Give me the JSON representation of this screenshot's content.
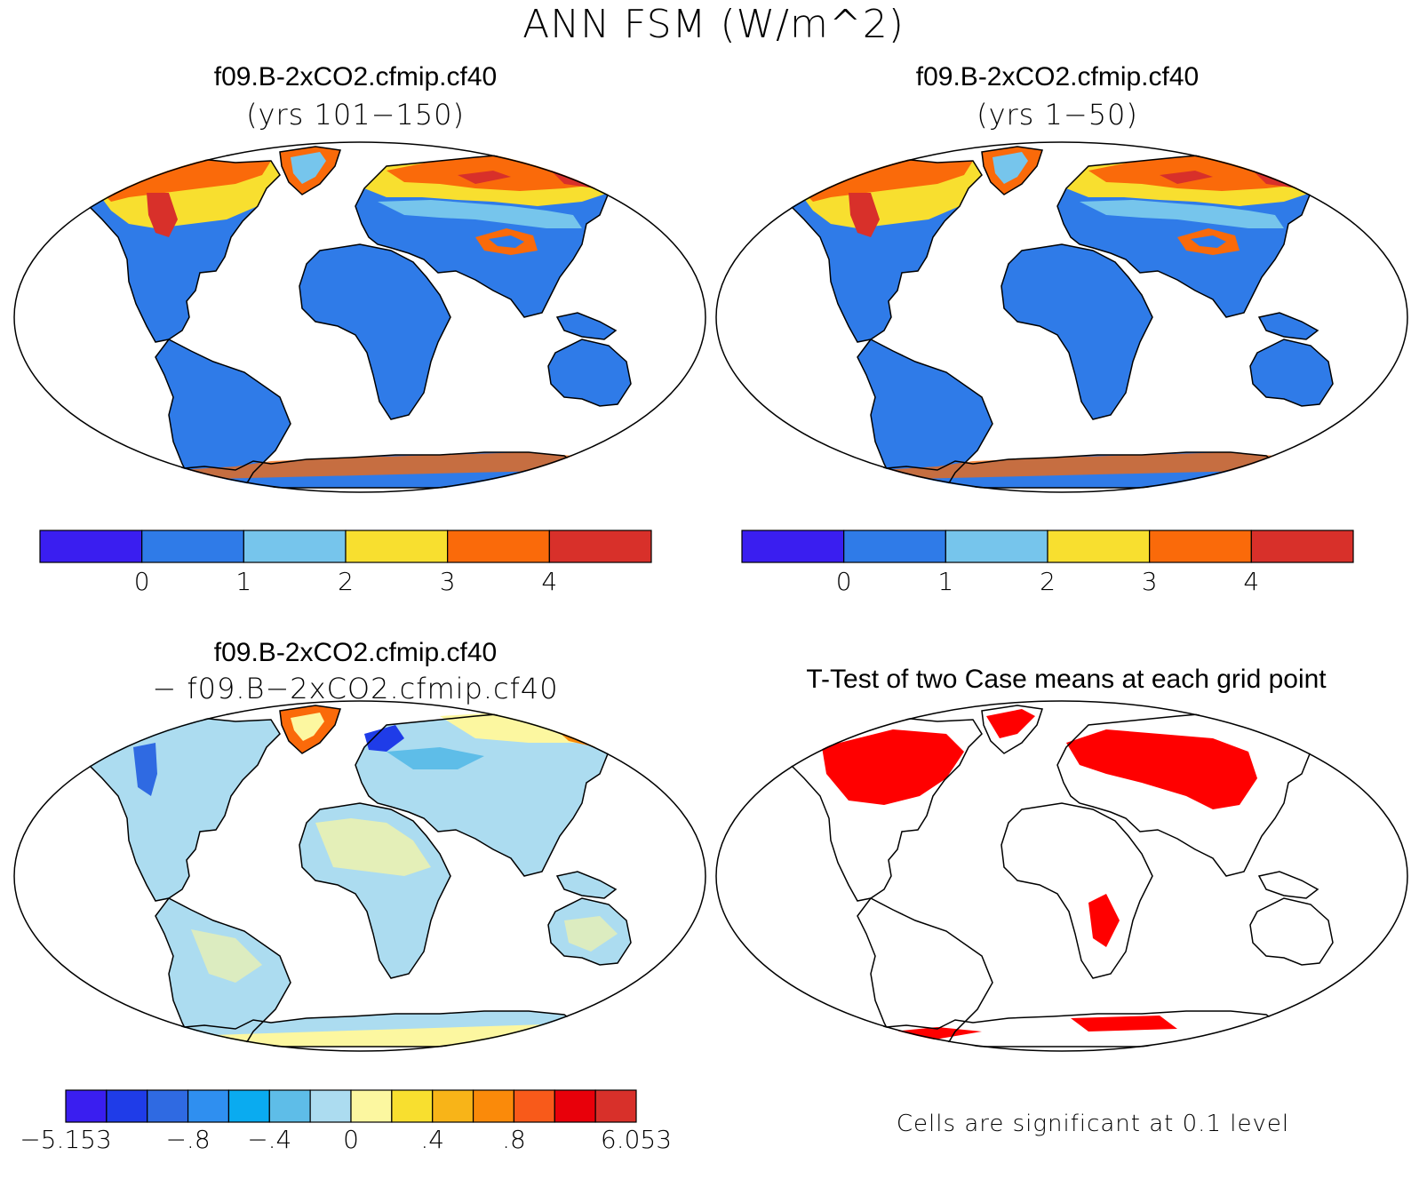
{
  "title": "ANN FSM (W/m^2)",
  "panels": [
    {
      "title": "f09.B-2xCO2.cfmip.cf40",
      "subtitle": "(yrs 101−150)"
    },
    {
      "title": "f09.B-2xCO2.cfmip.cf40",
      "subtitle": "(yrs 1−50)"
    },
    {
      "title": "f09.B-2xCO2.cfmip.cf40",
      "subtitle": "− f09.B−2xCO2.cfmip.cf40"
    },
    {
      "title": "T-Test of two Case means at each grid point"
    }
  ],
  "colorbar_top": {
    "colors": [
      "#3a1ef0",
      "#2f7be8",
      "#76c5ec",
      "#f8df2f",
      "#fa6a0a",
      "#d8302a"
    ],
    "labels": [
      "0",
      "1",
      "2",
      "3",
      "4"
    ]
  },
  "colorbar_diff": {
    "colors": [
      "#3a1ef0",
      "#1f3ce8",
      "#2f6ae2",
      "#2f8ff0",
      "#0aabf0",
      "#5ebde8",
      "#acdcf0",
      "#fcf7a0",
      "#f8df2f",
      "#f8b418",
      "#fa8a0a",
      "#f85a1a",
      "#e8000a",
      "#d8302a"
    ],
    "labels": [
      "−5.153",
      "−.8",
      "−.4",
      "0",
      ".4",
      ".8",
      "6.053"
    ]
  },
  "significance_note": "Cells are significant at 0.1 level",
  "colors": {
    "land_low": "#2f7be8",
    "land_mid": "#76c5ec",
    "land_yellow": "#f8df2f",
    "land_orange": "#fa6a0a",
    "land_red": "#d8302a",
    "diff_base": "#acdcf0",
    "diff_pale": "#fcf7a0",
    "sig_red": "#ff0000"
  }
}
